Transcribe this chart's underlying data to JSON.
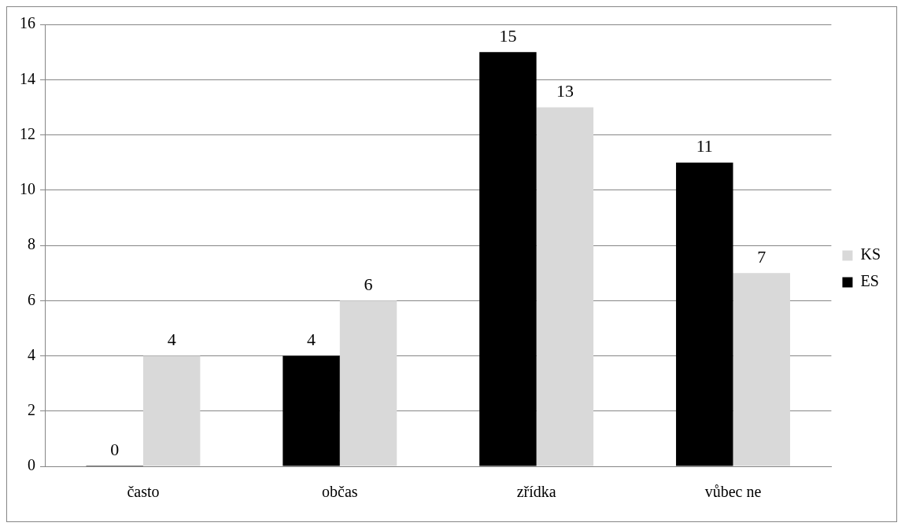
{
  "chart_data": {
    "type": "bar",
    "categories": [
      "často",
      "občas",
      "zřídka",
      "vůbec ne"
    ],
    "series": [
      {
        "name": "ES",
        "color": "#000000",
        "values": [
          0,
          4,
          15,
          11
        ]
      },
      {
        "name": "KS",
        "color": "#d9d9d9",
        "values": [
          4,
          6,
          13,
          7
        ]
      }
    ],
    "ylim": [
      0,
      16
    ],
    "yticks": [
      0,
      2,
      4,
      6,
      8,
      10,
      12,
      14,
      16
    ],
    "grid": "y",
    "legend": "right",
    "data_labels": true
  }
}
